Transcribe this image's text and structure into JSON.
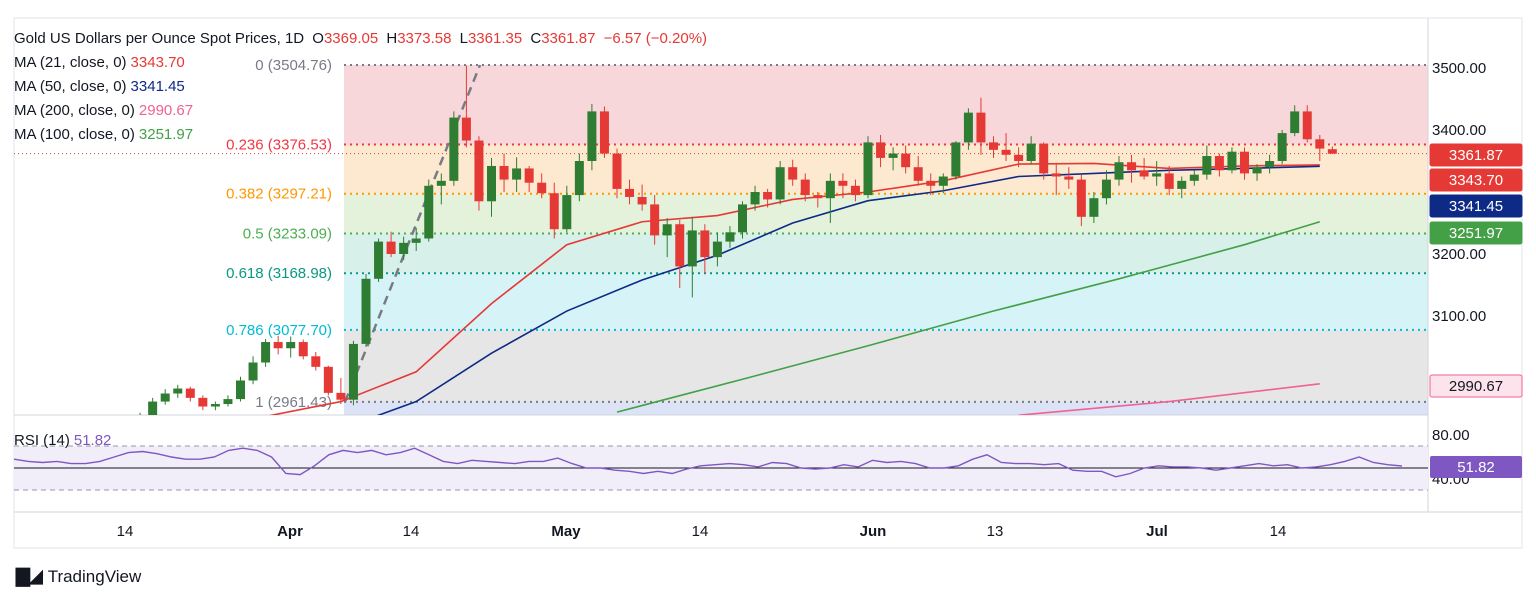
{
  "header": {
    "symbol": "Gold US Dollars per Ounce Spot Prices, 1D",
    "o_label": "O",
    "o": "3369.05",
    "h_label": "H",
    "h": "3373.58",
    "l_label": "L",
    "l": "3361.35",
    "c_label": "C",
    "c": "3361.87",
    "change": "−6.57 (−0.20%)"
  },
  "indicators": [
    {
      "label": "MA (21, close, 0)",
      "value": "3343.70",
      "color": "#e53935"
    },
    {
      "label": "MA (50, close, 0)",
      "value": "3341.45",
      "color": "#0d2a86"
    },
    {
      "label": "MA (200, close, 0)",
      "value": "2990.67",
      "color": "#f06292"
    },
    {
      "label": "MA (100, close, 0)",
      "value": "3251.97",
      "color": "#43a047"
    }
  ],
  "rsi": {
    "label": "RSI (14)",
    "value": "51.82",
    "color": "#7e57c2"
  },
  "brand": "TradingView",
  "chart_data": {
    "type": "candlestick",
    "price_axis": {
      "ticks": [
        "3500.00",
        "3400.00",
        "3200.00",
        "3100.00"
      ]
    },
    "rsi_axis": {
      "ticks": [
        "80.00",
        "40.00"
      ],
      "bands": [
        70,
        30
      ]
    },
    "x_ticks": [
      "14",
      "Apr",
      "14",
      "May",
      "14",
      "Jun",
      "13",
      "Jul",
      "14"
    ],
    "fibonacci": [
      {
        "label": "0 (3504.76)",
        "price": 3504.76,
        "color": "#787b86"
      },
      {
        "label": "0.236 (3376.53)",
        "price": 3376.53,
        "color": "#f23645"
      },
      {
        "label": "0.382 (3297.21)",
        "price": 3297.21,
        "color": "#ff9800"
      },
      {
        "label": "0.5 (3233.09)",
        "price": 3233.09,
        "color": "#4caf50"
      },
      {
        "label": "0.618 (3168.98)",
        "price": 3168.98,
        "color": "#089981"
      },
      {
        "label": "0.786 (3077.70)",
        "price": 3077.7,
        "color": "#00bcd4"
      },
      {
        "label": "1 (2961.43)",
        "price": 2961.43,
        "color": "#787b86"
      }
    ],
    "price_badges": [
      {
        "value": "3361.87",
        "price": 3361.87,
        "color": "#e53935"
      },
      {
        "value": "3343.70",
        "price": 3343.7,
        "color": "#e53935"
      },
      {
        "value": "3341.45",
        "price": 3341.45,
        "color": "#0d2a86"
      },
      {
        "value": "3251.97",
        "price": 3251.97,
        "color": "#43a047"
      },
      {
        "value": "2990.67",
        "price": 2990.67,
        "color": "#f06292"
      }
    ],
    "candles": [
      [
        2909,
        2926,
        2905,
        2921
      ],
      [
        2921,
        2933,
        2916,
        2928
      ],
      [
        2928,
        2944,
        2924,
        2940
      ],
      [
        2940,
        2968,
        2936,
        2962
      ],
      [
        2962,
        2982,
        2957,
        2975
      ],
      [
        2975,
        2989,
        2968,
        2983
      ],
      [
        2983,
        2986,
        2962,
        2968
      ],
      [
        2968,
        2972,
        2948,
        2954
      ],
      [
        2954,
        2962,
        2948,
        2958
      ],
      [
        2958,
        2972,
        2954,
        2966
      ],
      [
        2966,
        3002,
        2962,
        2996
      ],
      [
        2996,
        3035,
        2990,
        3025
      ],
      [
        3025,
        3063,
        3018,
        3058
      ],
      [
        3058,
        3068,
        3038,
        3048
      ],
      [
        3048,
        3067,
        3033,
        3058
      ],
      [
        3058,
        3062,
        3030,
        3035
      ],
      [
        3035,
        3042,
        3012,
        3018
      ],
      [
        3018,
        3020,
        2972,
        2976
      ],
      [
        2976,
        3000,
        2958,
        2965
      ],
      [
        2965,
        3060,
        2956,
        3055
      ],
      [
        3055,
        3168,
        3050,
        3160
      ],
      [
        3160,
        3225,
        3155,
        3220
      ],
      [
        3220,
        3236,
        3195,
        3200
      ],
      [
        3200,
        3228,
        3190,
        3218
      ],
      [
        3218,
        3242,
        3205,
        3225
      ],
      [
        3225,
        3320,
        3220,
        3310
      ],
      [
        3310,
        3330,
        3280,
        3318
      ],
      [
        3318,
        3430,
        3310,
        3420
      ],
      [
        3420,
        3504,
        3372,
        3383
      ],
      [
        3383,
        3390,
        3270,
        3285
      ],
      [
        3285,
        3355,
        3260,
        3342
      ],
      [
        3342,
        3362,
        3300,
        3320
      ],
      [
        3320,
        3356,
        3300,
        3338
      ],
      [
        3338,
        3342,
        3300,
        3315
      ],
      [
        3315,
        3330,
        3290,
        3298
      ],
      [
        3298,
        3315,
        3225,
        3240
      ],
      [
        3240,
        3310,
        3235,
        3295
      ],
      [
        3295,
        3362,
        3285,
        3350
      ],
      [
        3350,
        3442,
        3335,
        3430
      ],
      [
        3430,
        3438,
        3355,
        3362
      ],
      [
        3362,
        3370,
        3290,
        3305
      ],
      [
        3305,
        3320,
        3280,
        3292
      ],
      [
        3292,
        3312,
        3270,
        3280
      ],
      [
        3280,
        3295,
        3215,
        3230
      ],
      [
        3230,
        3258,
        3195,
        3248
      ],
      [
        3248,
        3255,
        3145,
        3180
      ],
      [
        3180,
        3260,
        3130,
        3238
      ],
      [
        3238,
        3248,
        3168,
        3195
      ],
      [
        3195,
        3235,
        3180,
        3220
      ],
      [
        3220,
        3245,
        3210,
        3235
      ],
      [
        3235,
        3285,
        3225,
        3280
      ],
      [
        3280,
        3310,
        3270,
        3300
      ],
      [
        3300,
        3305,
        3275,
        3288
      ],
      [
        3288,
        3350,
        3280,
        3340
      ],
      [
        3340,
        3352,
        3310,
        3320
      ],
      [
        3320,
        3330,
        3285,
        3295
      ],
      [
        3295,
        3300,
        3275,
        3290
      ],
      [
        3290,
        3330,
        3250,
        3318
      ],
      [
        3318,
        3330,
        3290,
        3310
      ],
      [
        3310,
        3320,
        3285,
        3295
      ],
      [
        3295,
        3390,
        3290,
        3380
      ],
      [
        3380,
        3392,
        3340,
        3355
      ],
      [
        3355,
        3372,
        3335,
        3362
      ],
      [
        3362,
        3375,
        3330,
        3340
      ],
      [
        3340,
        3358,
        3310,
        3318
      ],
      [
        3318,
        3330,
        3295,
        3310
      ],
      [
        3310,
        3330,
        3298,
        3325
      ],
      [
        3325,
        3382,
        3320,
        3380
      ],
      [
        3380,
        3435,
        3368,
        3428
      ],
      [
        3428,
        3452,
        3360,
        3380
      ],
      [
        3380,
        3390,
        3355,
        3368
      ],
      [
        3368,
        3395,
        3350,
        3360
      ],
      [
        3360,
        3372,
        3340,
        3350
      ],
      [
        3350,
        3390,
        3345,
        3378
      ],
      [
        3378,
        3380,
        3320,
        3330
      ],
      [
        3330,
        3345,
        3295,
        3325
      ],
      [
        3325,
        3340,
        3305,
        3320
      ],
      [
        3320,
        3328,
        3245,
        3260
      ],
      [
        3260,
        3300,
        3250,
        3290
      ],
      [
        3290,
        3335,
        3280,
        3320
      ],
      [
        3320,
        3358,
        3310,
        3348
      ],
      [
        3348,
        3360,
        3315,
        3335
      ],
      [
        3335,
        3355,
        3320,
        3325
      ],
      [
        3325,
        3350,
        3310,
        3330
      ],
      [
        3330,
        3342,
        3295,
        3305
      ],
      [
        3305,
        3325,
        3290,
        3318
      ],
      [
        3318,
        3335,
        3310,
        3328
      ],
      [
        3328,
        3375,
        3320,
        3358
      ],
      [
        3358,
        3362,
        3325,
        3335
      ],
      [
        3335,
        3372,
        3330,
        3365
      ],
      [
        3365,
        3372,
        3320,
        3330
      ],
      [
        3330,
        3345,
        3318,
        3340
      ],
      [
        3340,
        3360,
        3330,
        3350
      ],
      [
        3350,
        3400,
        3345,
        3395
      ],
      [
        3395,
        3440,
        3390,
        3430
      ],
      [
        3430,
        3440,
        3380,
        3385
      ],
      [
        3385,
        3392,
        3350,
        3370
      ],
      [
        3369.05,
        3373.58,
        3361.35,
        3361.87
      ]
    ],
    "moving_averages": [
      {
        "name": "MA (21, close, 0)",
        "color": "#e53935",
        "x": [
          0,
          6,
          12,
          18,
          24,
          30,
          36,
          42,
          48,
          54,
          60,
          66,
          72,
          78,
          84,
          90,
          96
        ],
        "y": [
          2895,
          2912,
          2938,
          2962,
          3010,
          3120,
          3215,
          3252,
          3262,
          3288,
          3300,
          3318,
          3345,
          3346,
          3338,
          3342,
          3343.7
        ]
      },
      {
        "name": "MA (50, close, 0)",
        "color": "#0d2a86",
        "x": [
          0,
          6,
          12,
          18,
          24,
          30,
          36,
          42,
          48,
          54,
          60,
          66,
          72,
          78,
          84,
          90,
          96
        ],
        "y": [
          2855,
          2872,
          2894,
          2918,
          2962,
          3040,
          3108,
          3158,
          3198,
          3250,
          3286,
          3302,
          3325,
          3330,
          3335,
          3338,
          3341.45
        ]
      },
      {
        "name": "MA (100, close, 0)",
        "color": "#43a047",
        "x": [
          40,
          50,
          60,
          70,
          80,
          90,
          96
        ],
        "y": [
          2945,
          2998,
          3052,
          3108,
          3160,
          3215,
          3251.97
        ]
      },
      {
        "name": "MA (200, close, 0)",
        "color": "#f06292",
        "x": [
          72,
          84,
          96
        ],
        "y": [
          2940,
          2962,
          2990.67
        ]
      }
    ],
    "rsi_series": [
      58,
      56,
      55,
      56,
      54,
      54,
      56,
      60,
      64,
      65,
      63,
      60,
      58,
      58,
      60,
      66,
      68,
      66,
      60,
      45,
      44,
      52,
      62,
      66,
      64,
      66,
      62,
      64,
      68,
      62,
      56,
      54,
      57,
      56,
      55,
      54,
      56,
      56,
      59,
      54,
      50,
      50,
      48,
      47,
      45,
      47,
      45,
      49,
      52,
      53,
      54,
      53,
      51,
      55,
      54,
      50,
      49,
      50,
      53,
      51,
      57,
      55,
      56,
      54,
      50,
      50,
      52,
      58,
      62,
      55,
      54,
      54,
      53,
      54,
      48,
      47,
      47,
      42,
      45,
      50,
      52,
      51,
      51,
      50,
      48,
      50,
      52,
      54,
      52,
      53,
      50,
      51,
      53,
      56,
      60,
      55,
      53,
      51.82
    ]
  }
}
